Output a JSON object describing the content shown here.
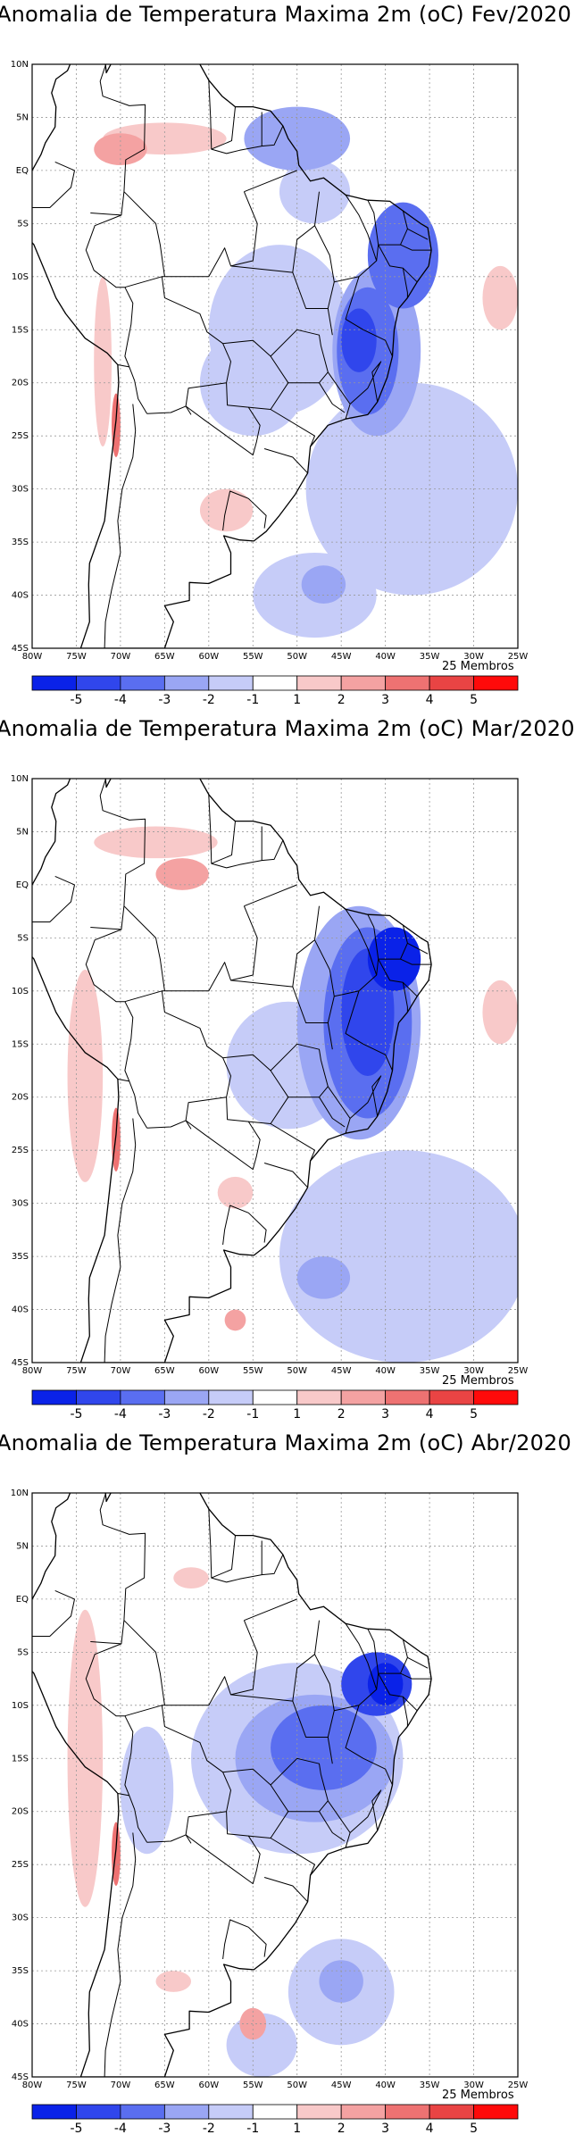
{
  "colors": {
    "neg5": "#0a22e8",
    "neg4": "#3046ec",
    "neg3": "#5a6ef0",
    "neg2": "#9aa6f4",
    "neg1": "#c6ccf8",
    "zero": "#ffffff",
    "pos1": "#f8c9c9",
    "pos2": "#f4a2a2",
    "pos3": "#ee7272",
    "pos4": "#e94444",
    "pos5": "#ff0a0a",
    "coast": "#000000",
    "grid": "#999999"
  },
  "axes": {
    "lat_labels": [
      "10N",
      "5N",
      "EQ",
      "5S",
      "10S",
      "15S",
      "20S",
      "25S",
      "30S",
      "35S",
      "40S",
      "45S"
    ],
    "lat_values": [
      10,
      5,
      0,
      -5,
      -10,
      -15,
      -20,
      -25,
      -30,
      -35,
      -40,
      -45
    ],
    "lon_labels": [
      "80W",
      "75W",
      "70W",
      "65W",
      "60W",
      "55W",
      "50W",
      "45W",
      "40W",
      "35W",
      "30W",
      "25W"
    ],
    "lon_values": [
      -80,
      -75,
      -70,
      -65,
      -60,
      -55,
      -50,
      -45,
      -40,
      -35,
      -30,
      -25
    ]
  },
  "colorbar": {
    "labels": [
      "-5",
      "-4",
      "-3",
      "-2",
      "-1",
      "1",
      "2",
      "3",
      "4",
      "5"
    ],
    "members_text": "25 Membros"
  },
  "panels": [
    {
      "title": "Anomalia de Temperatura Maxima 2m (oC) Fev/2020",
      "month": "Fev/2020",
      "anomalies": [
        {
          "lon": -41,
          "lat": -17,
          "rx": 5,
          "ry": 8,
          "level": -2
        },
        {
          "lon": -42,
          "lat": -17,
          "rx": 3.5,
          "ry": 6,
          "level": -3
        },
        {
          "lon": -43,
          "lat": -16,
          "rx": 2,
          "ry": 3,
          "level": -4
        },
        {
          "lon": -38,
          "lat": -8,
          "rx": 4,
          "ry": 5,
          "level": -3
        },
        {
          "lon": -52,
          "lat": -15,
          "rx": 8,
          "ry": 8,
          "level": -1
        },
        {
          "lon": -55,
          "lat": -20,
          "rx": 6,
          "ry": 5,
          "level": -1
        },
        {
          "lon": -50,
          "lat": 3,
          "rx": 6,
          "ry": 3,
          "level": -2
        },
        {
          "lon": -48,
          "lat": -2,
          "rx": 4,
          "ry": 3,
          "level": -1
        },
        {
          "lon": -37,
          "lat": -30,
          "rx": 12,
          "ry": 10,
          "level": -1
        },
        {
          "lon": -48,
          "lat": -40,
          "rx": 7,
          "ry": 4,
          "level": -1
        },
        {
          "lon": -47,
          "lat": -39,
          "rx": 2.5,
          "ry": 1.8,
          "level": -2
        },
        {
          "lon": -65,
          "lat": 3,
          "rx": 7,
          "ry": 1.5,
          "level": 1
        },
        {
          "lon": -70,
          "lat": 2,
          "rx": 3,
          "ry": 1.5,
          "level": 2
        },
        {
          "lon": -70.5,
          "lat": -24,
          "rx": 0.5,
          "ry": 3,
          "level": 3
        },
        {
          "lon": -72,
          "lat": -18,
          "rx": 1,
          "ry": 8,
          "level": 1
        },
        {
          "lon": -58,
          "lat": -32,
          "rx": 3,
          "ry": 2,
          "level": 1
        },
        {
          "lon": -27,
          "lat": -12,
          "rx": 2,
          "ry": 3,
          "level": 1
        }
      ]
    },
    {
      "title": "Anomalia de Temperatura Maxima 2m (oC) Mar/2020",
      "month": "Mar/2020",
      "anomalies": [
        {
          "lon": -43,
          "lat": -13,
          "rx": 7,
          "ry": 11,
          "level": -2
        },
        {
          "lon": -42,
          "lat": -13,
          "rx": 5,
          "ry": 9,
          "level": -3
        },
        {
          "lon": -42,
          "lat": -12,
          "rx": 3,
          "ry": 6,
          "level": -4
        },
        {
          "lon": -39,
          "lat": -7,
          "rx": 3,
          "ry": 3,
          "level": -5
        },
        {
          "lon": -51,
          "lat": -17,
          "rx": 7,
          "ry": 6,
          "level": -1
        },
        {
          "lon": -38,
          "lat": -35,
          "rx": 14,
          "ry": 10,
          "level": -1
        },
        {
          "lon": -47,
          "lat": -37,
          "rx": 3,
          "ry": 2,
          "level": -2
        },
        {
          "lon": -66,
          "lat": 4,
          "rx": 7,
          "ry": 1.5,
          "level": 1
        },
        {
          "lon": -63,
          "lat": 1,
          "rx": 3,
          "ry": 1.5,
          "level": 2
        },
        {
          "lon": -74,
          "lat": -18,
          "rx": 2,
          "ry": 10,
          "level": 1
        },
        {
          "lon": -70.5,
          "lat": -24,
          "rx": 0.5,
          "ry": 3,
          "level": 3
        },
        {
          "lon": -57,
          "lat": -29,
          "rx": 2,
          "ry": 1.5,
          "level": 1
        },
        {
          "lon": -57,
          "lat": -41,
          "rx": 1.2,
          "ry": 1,
          "level": 2
        },
        {
          "lon": -27,
          "lat": -12,
          "rx": 2,
          "ry": 3,
          "level": 1
        }
      ]
    },
    {
      "title": "Anomalia de Temperatura Maxima 2m (oC) Abr/2020",
      "month": "Abr/2020",
      "anomalies": [
        {
          "lon": -50,
          "lat": -15,
          "rx": 12,
          "ry": 9,
          "level": -1
        },
        {
          "lon": -48,
          "lat": -15,
          "rx": 9,
          "ry": 6,
          "level": -2
        },
        {
          "lon": -47,
          "lat": -14,
          "rx": 6,
          "ry": 4,
          "level": -3
        },
        {
          "lon": -41,
          "lat": -8,
          "rx": 4,
          "ry": 3,
          "level": -4
        },
        {
          "lon": -40,
          "lat": -8,
          "rx": 2,
          "ry": 2,
          "level": -5
        },
        {
          "lon": -67,
          "lat": -18,
          "rx": 3,
          "ry": 6,
          "level": -1
        },
        {
          "lon": -45,
          "lat": -37,
          "rx": 6,
          "ry": 5,
          "level": -1
        },
        {
          "lon": -45,
          "lat": -36,
          "rx": 2.5,
          "ry": 2,
          "level": -2
        },
        {
          "lon": -54,
          "lat": -42,
          "rx": 4,
          "ry": 3,
          "level": -1
        },
        {
          "lon": -74,
          "lat": -15,
          "rx": 2,
          "ry": 14,
          "level": 1
        },
        {
          "lon": -70.5,
          "lat": -24,
          "rx": 0.5,
          "ry": 3,
          "level": 3
        },
        {
          "lon": -55,
          "lat": -40,
          "rx": 1.5,
          "ry": 1.5,
          "level": 2
        },
        {
          "lon": -64,
          "lat": -36,
          "rx": 2,
          "ry": 1,
          "level": 1
        },
        {
          "lon": -62,
          "lat": 2,
          "rx": 2,
          "ry": 1,
          "level": 1
        }
      ]
    }
  ]
}
